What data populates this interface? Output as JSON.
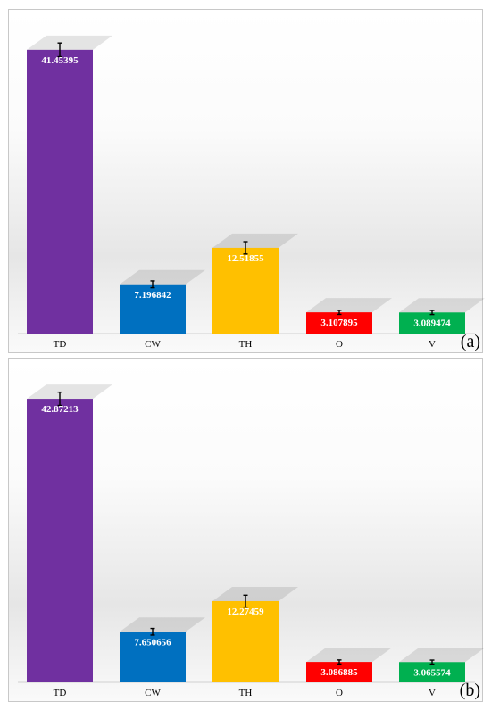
{
  "chart_data": [
    {
      "type": "bar",
      "panel": "(a)",
      "categories": [
        "TD",
        "CW",
        "TH",
        "O",
        "V"
      ],
      "values": [
        41.45395,
        7.196842,
        12.51855,
        3.107895,
        3.089474
      ],
      "value_labels": [
        "41.45395",
        "7.196842",
        "12.51855",
        "3.107895",
        "3.089474"
      ],
      "errors": [
        1.0,
        0.5,
        0.9,
        0.3,
        0.3
      ],
      "colors": [
        "#7030A0",
        "#0070C0",
        "#FFC000",
        "#FF0000",
        "#00B050"
      ],
      "ylim": [
        0,
        43
      ],
      "grid": false,
      "title": "",
      "xlabel": "",
      "ylabel": ""
    },
    {
      "type": "bar",
      "panel": "(b)",
      "categories": [
        "TD",
        "CW",
        "TH",
        "O",
        "V"
      ],
      "values": [
        42.87213,
        7.650656,
        12.27459,
        3.086885,
        3.065574
      ],
      "value_labels": [
        "42.87213",
        "7.650656",
        "12.27459",
        "3.086885",
        "3.065574"
      ],
      "errors": [
        1.0,
        0.5,
        0.9,
        0.3,
        0.3
      ],
      "colors": [
        "#7030A0",
        "#0070C0",
        "#FFC000",
        "#FF0000",
        "#00B050"
      ],
      "ylim": [
        0,
        44.5
      ],
      "grid": false,
      "title": "",
      "xlabel": "",
      "ylabel": ""
    }
  ]
}
